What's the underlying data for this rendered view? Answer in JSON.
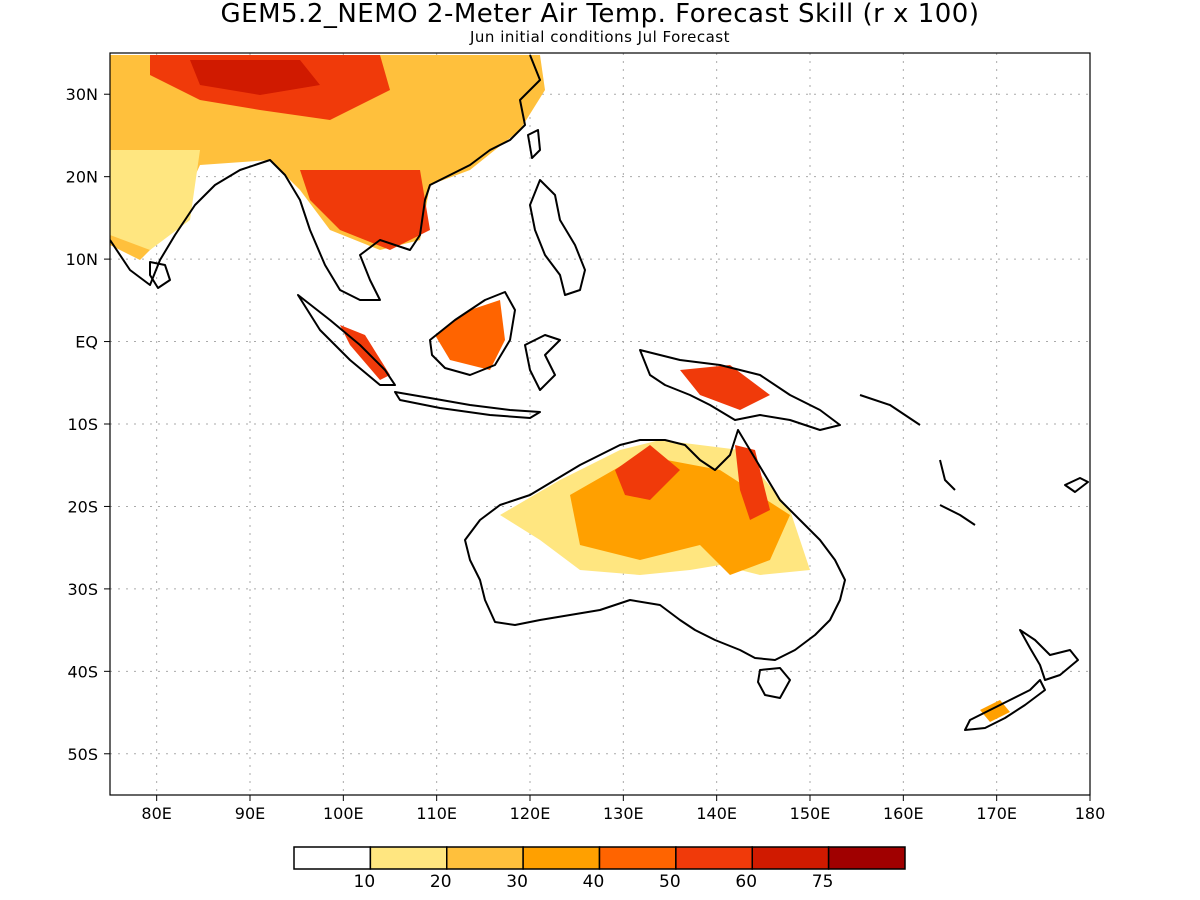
{
  "title": "GEM5.2_NEMO 2-Meter Air Temp. Forecast Skill (r x 100)",
  "subtitle": "Jun initial conditions  Jul Forecast",
  "map": {
    "region": "Indo-Pacific / Australia",
    "lon_range": [
      75,
      180
    ],
    "lat_range": [
      -55,
      35
    ],
    "grid": true,
    "x_ticks": [
      {
        "value": 80,
        "label": "80E"
      },
      {
        "value": 90,
        "label": "90E"
      },
      {
        "value": 100,
        "label": "100E"
      },
      {
        "value": 110,
        "label": "110E"
      },
      {
        "value": 120,
        "label": "120E"
      },
      {
        "value": 130,
        "label": "130E"
      },
      {
        "value": 140,
        "label": "140E"
      },
      {
        "value": 150,
        "label": "150E"
      },
      {
        "value": 160,
        "label": "160E"
      },
      {
        "value": 170,
        "label": "170E"
      },
      {
        "value": 180,
        "label": "180"
      }
    ],
    "y_ticks": [
      {
        "value": 30,
        "label": "30N"
      },
      {
        "value": 20,
        "label": "20N"
      },
      {
        "value": 10,
        "label": "10N"
      },
      {
        "value": 0,
        "label": "EQ"
      },
      {
        "value": -10,
        "label": "10S"
      },
      {
        "value": -20,
        "label": "20S"
      },
      {
        "value": -30,
        "label": "30S"
      },
      {
        "value": -40,
        "label": "40S"
      },
      {
        "value": -50,
        "label": "50S"
      }
    ]
  },
  "colorbar": {
    "colors": [
      "#ffffff",
      "#ffe680",
      "#ffc03c",
      "#ffa000",
      "#ff6400",
      "#f03a0a",
      "#d01a00",
      "#a00000"
    ],
    "labels": [
      "10",
      "20",
      "30",
      "40",
      "50",
      "60",
      "75"
    ]
  }
}
